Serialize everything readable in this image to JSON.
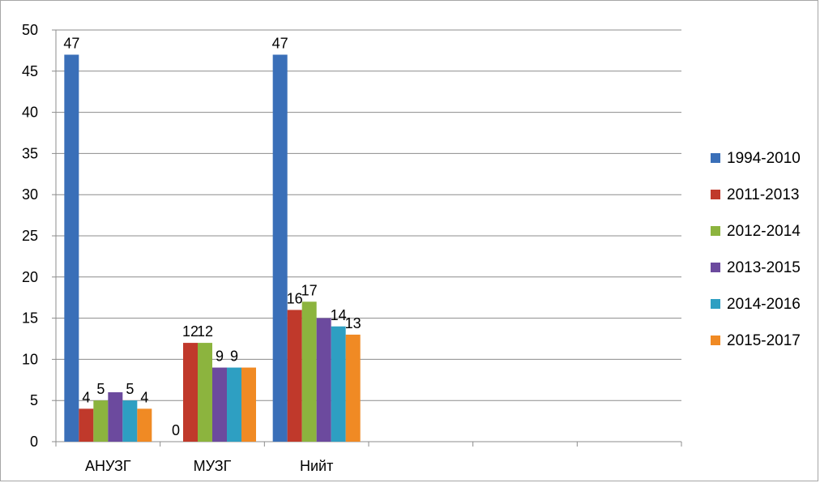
{
  "chart_data": {
    "type": "bar",
    "categories": [
      "АНУЗГ",
      "МУЗГ",
      "Нийт"
    ],
    "ylim": [
      0,
      50
    ],
    "yticks": [
      0,
      5,
      10,
      15,
      20,
      25,
      30,
      35,
      40,
      45,
      50
    ],
    "grid": true,
    "legend_position": "right",
    "series": [
      {
        "name": "1994-2010",
        "color": "#3a6fb8",
        "values": [
          47,
          0,
          47
        ],
        "labels": [
          "47",
          "0",
          "47"
        ]
      },
      {
        "name": "2011-2013",
        "color": "#c0392b",
        "values": [
          4,
          12,
          16
        ],
        "labels": [
          "4",
          "12",
          "16"
        ]
      },
      {
        "name": "2012-2014",
        "color": "#8cb43e",
        "values": [
          5,
          12,
          17
        ],
        "labels": [
          "5",
          "12",
          "17"
        ]
      },
      {
        "name": "2013-2015",
        "color": "#6c4a9e",
        "values": [
          6,
          9,
          15
        ],
        "labels": [
          "",
          "9",
          ""
        ]
      },
      {
        "name": "2014-2016",
        "color": "#2e9fc2",
        "values": [
          5,
          9,
          14
        ],
        "labels": [
          "5",
          "9",
          "14"
        ]
      },
      {
        "name": "2015-2017",
        "color": "#f08a24",
        "values": [
          4,
          9,
          13
        ],
        "labels": [
          "4",
          "",
          "13"
        ]
      }
    ]
  }
}
